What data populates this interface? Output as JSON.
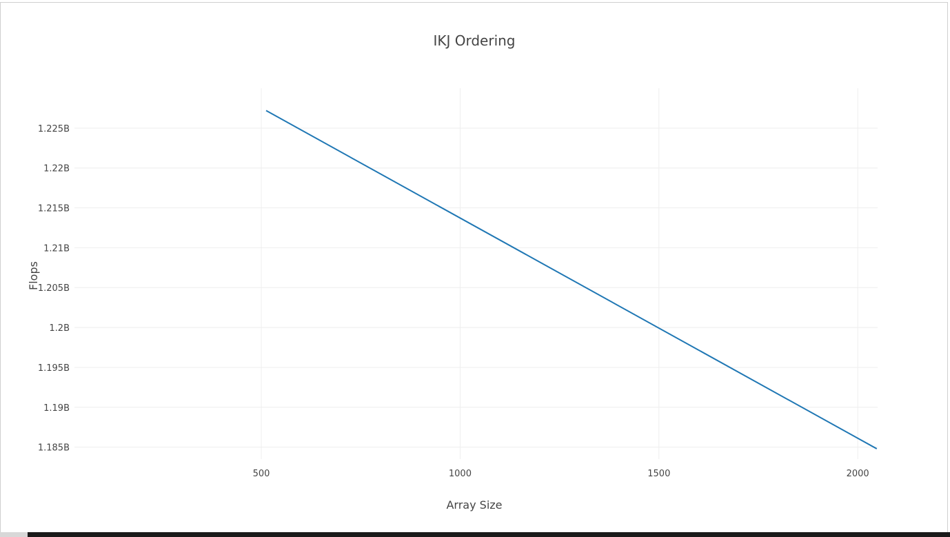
{
  "chart_data": {
    "type": "line",
    "title": "IKJ Ordering",
    "xlabel": "Array Size",
    "ylabel": "Flops",
    "xlim": [
      30,
      2050
    ],
    "ylim": [
      1.1835,
      1.23
    ],
    "x_ticks": [
      500,
      1000,
      1500,
      2000
    ],
    "x_tick_labels": [
      "500",
      "1000",
      "1500",
      "2000"
    ],
    "y_ticks": [
      1.185,
      1.19,
      1.195,
      1.2,
      1.205,
      1.21,
      1.215,
      1.22,
      1.225
    ],
    "y_tick_labels": [
      "1.185B",
      "1.19B",
      "1.195B",
      "1.2B",
      "1.205B",
      "1.21B",
      "1.215B",
      "1.22B",
      "1.225B"
    ],
    "y_unit": "B",
    "grid": true,
    "series": [
      {
        "x": [
          512,
          2048
        ],
        "y": [
          1.2272,
          1.1848
        ],
        "color": "#1f77b4"
      }
    ]
  }
}
